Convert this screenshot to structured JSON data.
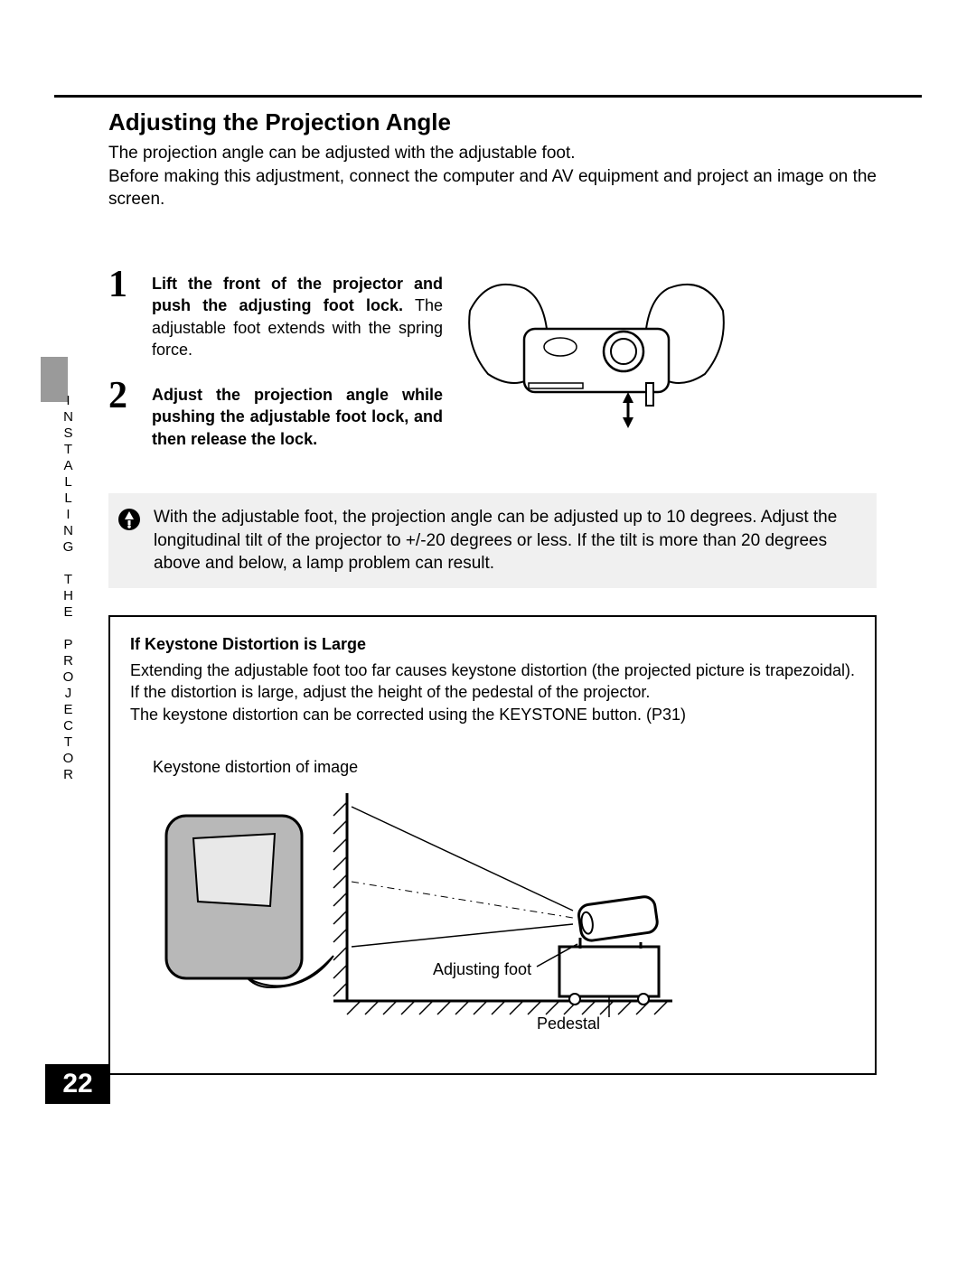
{
  "page": {
    "number": "22",
    "side_label": "INSTALLING THE PROJECTOR"
  },
  "heading": "Adjusting the Projection Angle",
  "intro": "The projection angle can be adjusted with the adjustable foot.\nBefore making this adjustment, connect the computer and AV equipment and project an image on the screen.",
  "steps": [
    {
      "num": "1",
      "title": "Lift the front of the projector and push the adjusting foot lock.",
      "desc": "The adjustable foot extends with the spring force."
    },
    {
      "num": "2",
      "title": "Adjust the projection angle while pushing the adjustable foot lock, and then release the lock.",
      "desc": ""
    }
  ],
  "note": "With the adjustable foot, the projection angle can be adjusted up to 10 degrees. Adjust the longitudinal tilt of the projector to +/-20 degrees or less. If the tilt is more than 20 degrees above and below, a lamp problem can result.",
  "keystone": {
    "title": "If Keystone Distortion is Large",
    "text": "Extending the adjustable foot too far causes keystone distortion (the projected picture is trapezoidal). If the distortion is large, adjust the height of the pedestal of the projector.\nThe keystone distortion can be corrected using the KEYSTONE button. (P31)",
    "labels": {
      "distortion": "Keystone distortion of image",
      "foot": "Adjusting foot",
      "pedestal": "Pedestal"
    }
  },
  "colors": {
    "text": "#000000",
    "bg": "#ffffff",
    "note_bg": "#f0f0f0",
    "side_tab": "#9a9a9a",
    "diagram_fill": "#b8b8b8",
    "diagram_screen": "#e8e8e8"
  }
}
